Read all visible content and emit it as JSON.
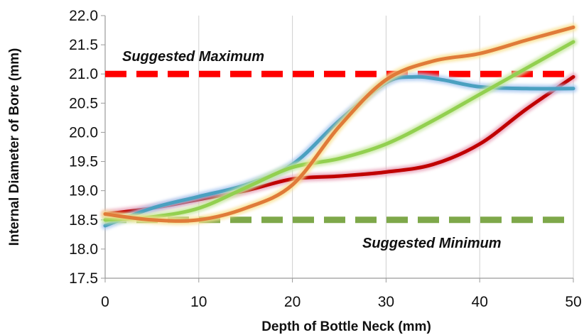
{
  "chart_data": {
    "type": "line",
    "xlabel": "Depth of Bottle Neck (mm)",
    "ylabel": "Internal Diameter of Bore (mm)",
    "xlim": [
      0,
      50
    ],
    "ylim": [
      17.5,
      22.0
    ],
    "xticks": [
      "0",
      "10",
      "20",
      "30",
      "40",
      "50"
    ],
    "yticks": [
      "17.5",
      "18.0",
      "18.5",
      "19.0",
      "19.5",
      "20.0",
      "20.5",
      "21.0",
      "21.5",
      "22.0"
    ],
    "grid": "vertical",
    "legend": "none",
    "series": [
      {
        "color": "#c00000",
        "glow": "#e8a0b8",
        "x": [
          0,
          5,
          10,
          15,
          20,
          25,
          30,
          35,
          40,
          45,
          50
        ],
        "y": [
          18.6,
          18.7,
          18.85,
          19.0,
          19.2,
          19.25,
          19.32,
          19.45,
          19.8,
          20.4,
          20.95
        ]
      },
      {
        "color": "#4aa0c0",
        "glow": "#a8c8f0",
        "x": [
          0,
          5,
          10,
          15,
          20,
          25,
          30,
          33,
          36,
          40,
          45,
          50
        ],
        "y": [
          18.4,
          18.7,
          18.9,
          19.1,
          19.45,
          20.2,
          20.85,
          20.95,
          20.9,
          20.78,
          20.75,
          20.75
        ]
      },
      {
        "color": "#92d050",
        "glow": "#c8e8a0",
        "x": [
          0,
          5,
          10,
          15,
          20,
          25,
          30,
          35,
          40,
          45,
          50
        ],
        "y": [
          18.5,
          18.55,
          18.7,
          19.05,
          19.4,
          19.55,
          19.8,
          20.2,
          20.65,
          21.1,
          21.55
        ]
      },
      {
        "color": "#e07b39",
        "glow": "#f8e090",
        "x": [
          0,
          5,
          10,
          15,
          20,
          25,
          30,
          35,
          40,
          45,
          50
        ],
        "y": [
          18.6,
          18.5,
          18.5,
          18.7,
          19.1,
          20.1,
          20.9,
          21.22,
          21.35,
          21.58,
          21.8
        ]
      }
    ],
    "reference_lines": [
      {
        "label": "Suggested Maximum",
        "y": 21.0,
        "color": "#ff0000"
      },
      {
        "label": "Suggested Minimum",
        "y": 18.5,
        "color": "#7ea84a"
      }
    ]
  }
}
